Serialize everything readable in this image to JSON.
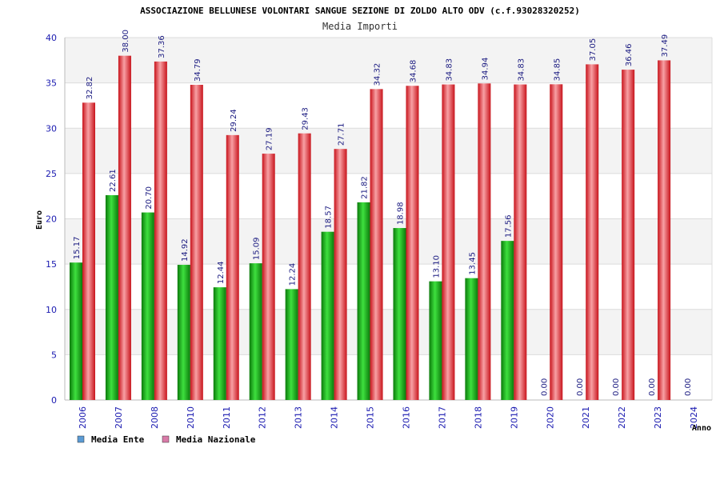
{
  "chart_data": {
    "type": "bar",
    "title": "ASSOCIAZIONE BELLUNESE VOLONTARI SANGUE SEZIONE DI ZOLDO ALTO ODV (c.f.93028320252)",
    "subtitle": "Media Importi",
    "xlabel": "Anno",
    "ylabel": "Euro",
    "ylim": [
      0,
      40
    ],
    "yticks": [
      0,
      5,
      10,
      15,
      20,
      25,
      30,
      35,
      40
    ],
    "grid": true,
    "legend_position": "bottom-left",
    "categories": [
      "2006",
      "2007",
      "2008",
      "2010",
      "2011",
      "2012",
      "2013",
      "2014",
      "2015",
      "2016",
      "2017",
      "2018",
      "2019",
      "2020",
      "2021",
      "2022",
      "2023",
      "2024"
    ],
    "series": [
      {
        "name": "Media Ente",
        "color": "#1aa81a",
        "legend_color": "#5b9bd5",
        "values": [
          15.17,
          22.61,
          20.7,
          14.92,
          12.44,
          15.09,
          12.24,
          18.57,
          21.82,
          18.98,
          13.1,
          13.45,
          17.56,
          0.0,
          0.0,
          0.0,
          0.0,
          0.0
        ],
        "labels": [
          "15.17",
          "22.61",
          "20.70",
          "14.92",
          "12.44",
          "15.09",
          "12.24",
          "18.57",
          "21.82",
          "18.98",
          "13.10",
          "13.45",
          "17.56",
          "0.00",
          "0.00",
          "0.00",
          "0.00",
          "0.00"
        ]
      },
      {
        "name": "Media Nazionale",
        "color": "#e8202a",
        "legend_color": "#d97ba8",
        "values": [
          32.82,
          38.0,
          37.36,
          34.79,
          29.24,
          27.19,
          29.43,
          27.71,
          34.32,
          34.68,
          34.83,
          34.94,
          34.83,
          34.85,
          37.05,
          36.46,
          37.49,
          null
        ],
        "labels": [
          "32.82",
          "38.00",
          "37.36",
          "34.79",
          "29.24",
          "27.19",
          "29.43",
          "27.71",
          "34.32",
          "34.68",
          "34.83",
          "34.94",
          "34.83",
          "34.85",
          "37.05",
          "36.46",
          "37.49",
          ""
        ]
      }
    ]
  }
}
